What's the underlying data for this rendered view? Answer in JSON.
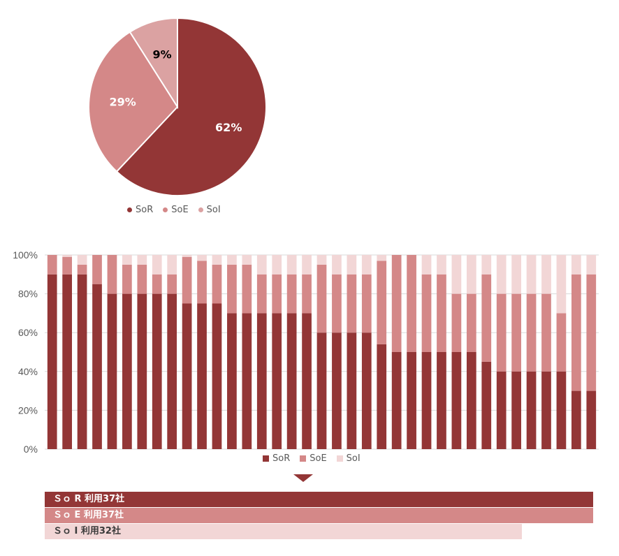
{
  "colors": {
    "sor": "#933636",
    "soe": "#d48888",
    "soi_pie": "#dba2a2",
    "soi_bar": "#f2d6d6"
  },
  "chart_data": [
    {
      "type": "pie",
      "title": "",
      "labels": [
        "SoR",
        "SoE",
        "SoI"
      ],
      "values": [
        62,
        29,
        9
      ],
      "data_labels": [
        "62%",
        "29%",
        "9%"
      ],
      "legend_position": "bottom"
    },
    {
      "type": "bar",
      "stacked": true,
      "title": "",
      "ylim": [
        0,
        100
      ],
      "yticks": [
        "0%",
        "20%",
        "40%",
        "60%",
        "80%",
        "100%"
      ],
      "legend_position": "bottom",
      "series": [
        {
          "name": "SoR",
          "values": [
            90,
            90,
            90,
            85,
            80,
            80,
            80,
            80,
            80,
            75,
            75,
            75,
            70,
            70,
            70,
            70,
            70,
            70,
            60,
            60,
            60,
            60,
            54,
            50,
            50,
            50,
            50,
            50,
            50,
            45,
            40,
            40,
            40,
            40,
            40,
            30,
            30
          ]
        },
        {
          "name": "SoE",
          "values": [
            10,
            9,
            5,
            15,
            20,
            15,
            15,
            10,
            10,
            24,
            22,
            20,
            25,
            25,
            20,
            20,
            20,
            20,
            35,
            30,
            30,
            30,
            43,
            50,
            50,
            40,
            40,
            30,
            30,
            45,
            40,
            40,
            40,
            40,
            30,
            60,
            60
          ]
        },
        {
          "name": "SoI",
          "values": [
            0,
            1,
            5,
            0,
            0,
            5,
            5,
            10,
            10,
            1,
            3,
            5,
            5,
            5,
            10,
            10,
            10,
            10,
            5,
            10,
            10,
            10,
            3,
            0,
            0,
            10,
            10,
            20,
            20,
            10,
            20,
            20,
            20,
            20,
            30,
            10,
            10
          ]
        }
      ]
    }
  ],
  "legend": {
    "sor": "SoR",
    "soe": "SoE",
    "soi": "SoI"
  },
  "summary": {
    "sor": "Ｓｏ R 利用37社",
    "soe": "Ｓｏ E 利用37社",
    "soi": "Ｓｏ I 利用32社"
  }
}
